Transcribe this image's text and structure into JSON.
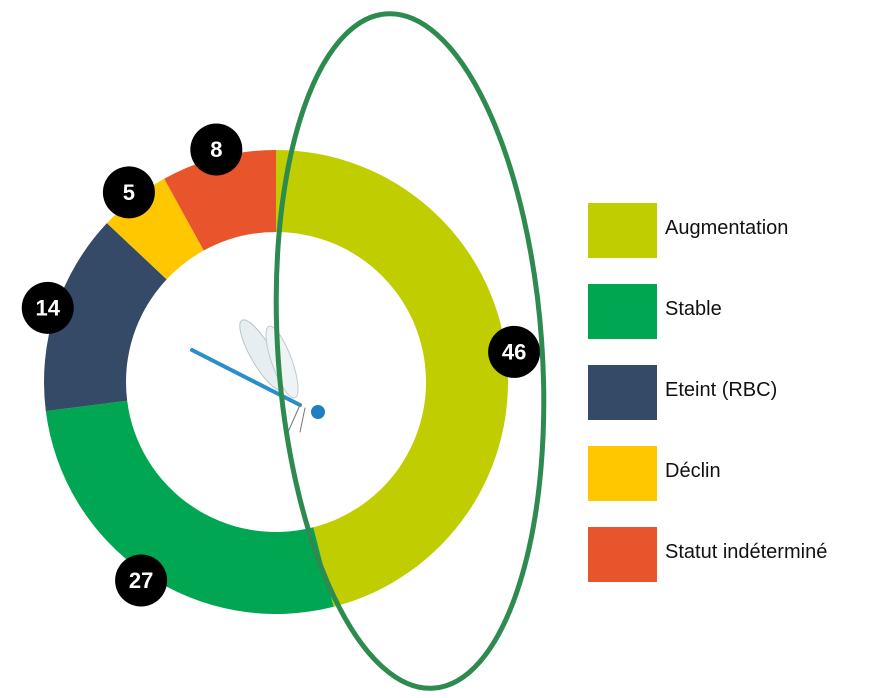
{
  "chart_data": {
    "type": "donut",
    "categories": [
      "Augmentation",
      "Stable",
      "Eteint (RBC)",
      "Déclin",
      "Statut indéterminé"
    ],
    "values": [
      46,
      27,
      14,
      5,
      8
    ],
    "colors": [
      "#c0cd00",
      "#00a651",
      "#354a66",
      "#ffc700",
      "#e8542c"
    ]
  }
}
